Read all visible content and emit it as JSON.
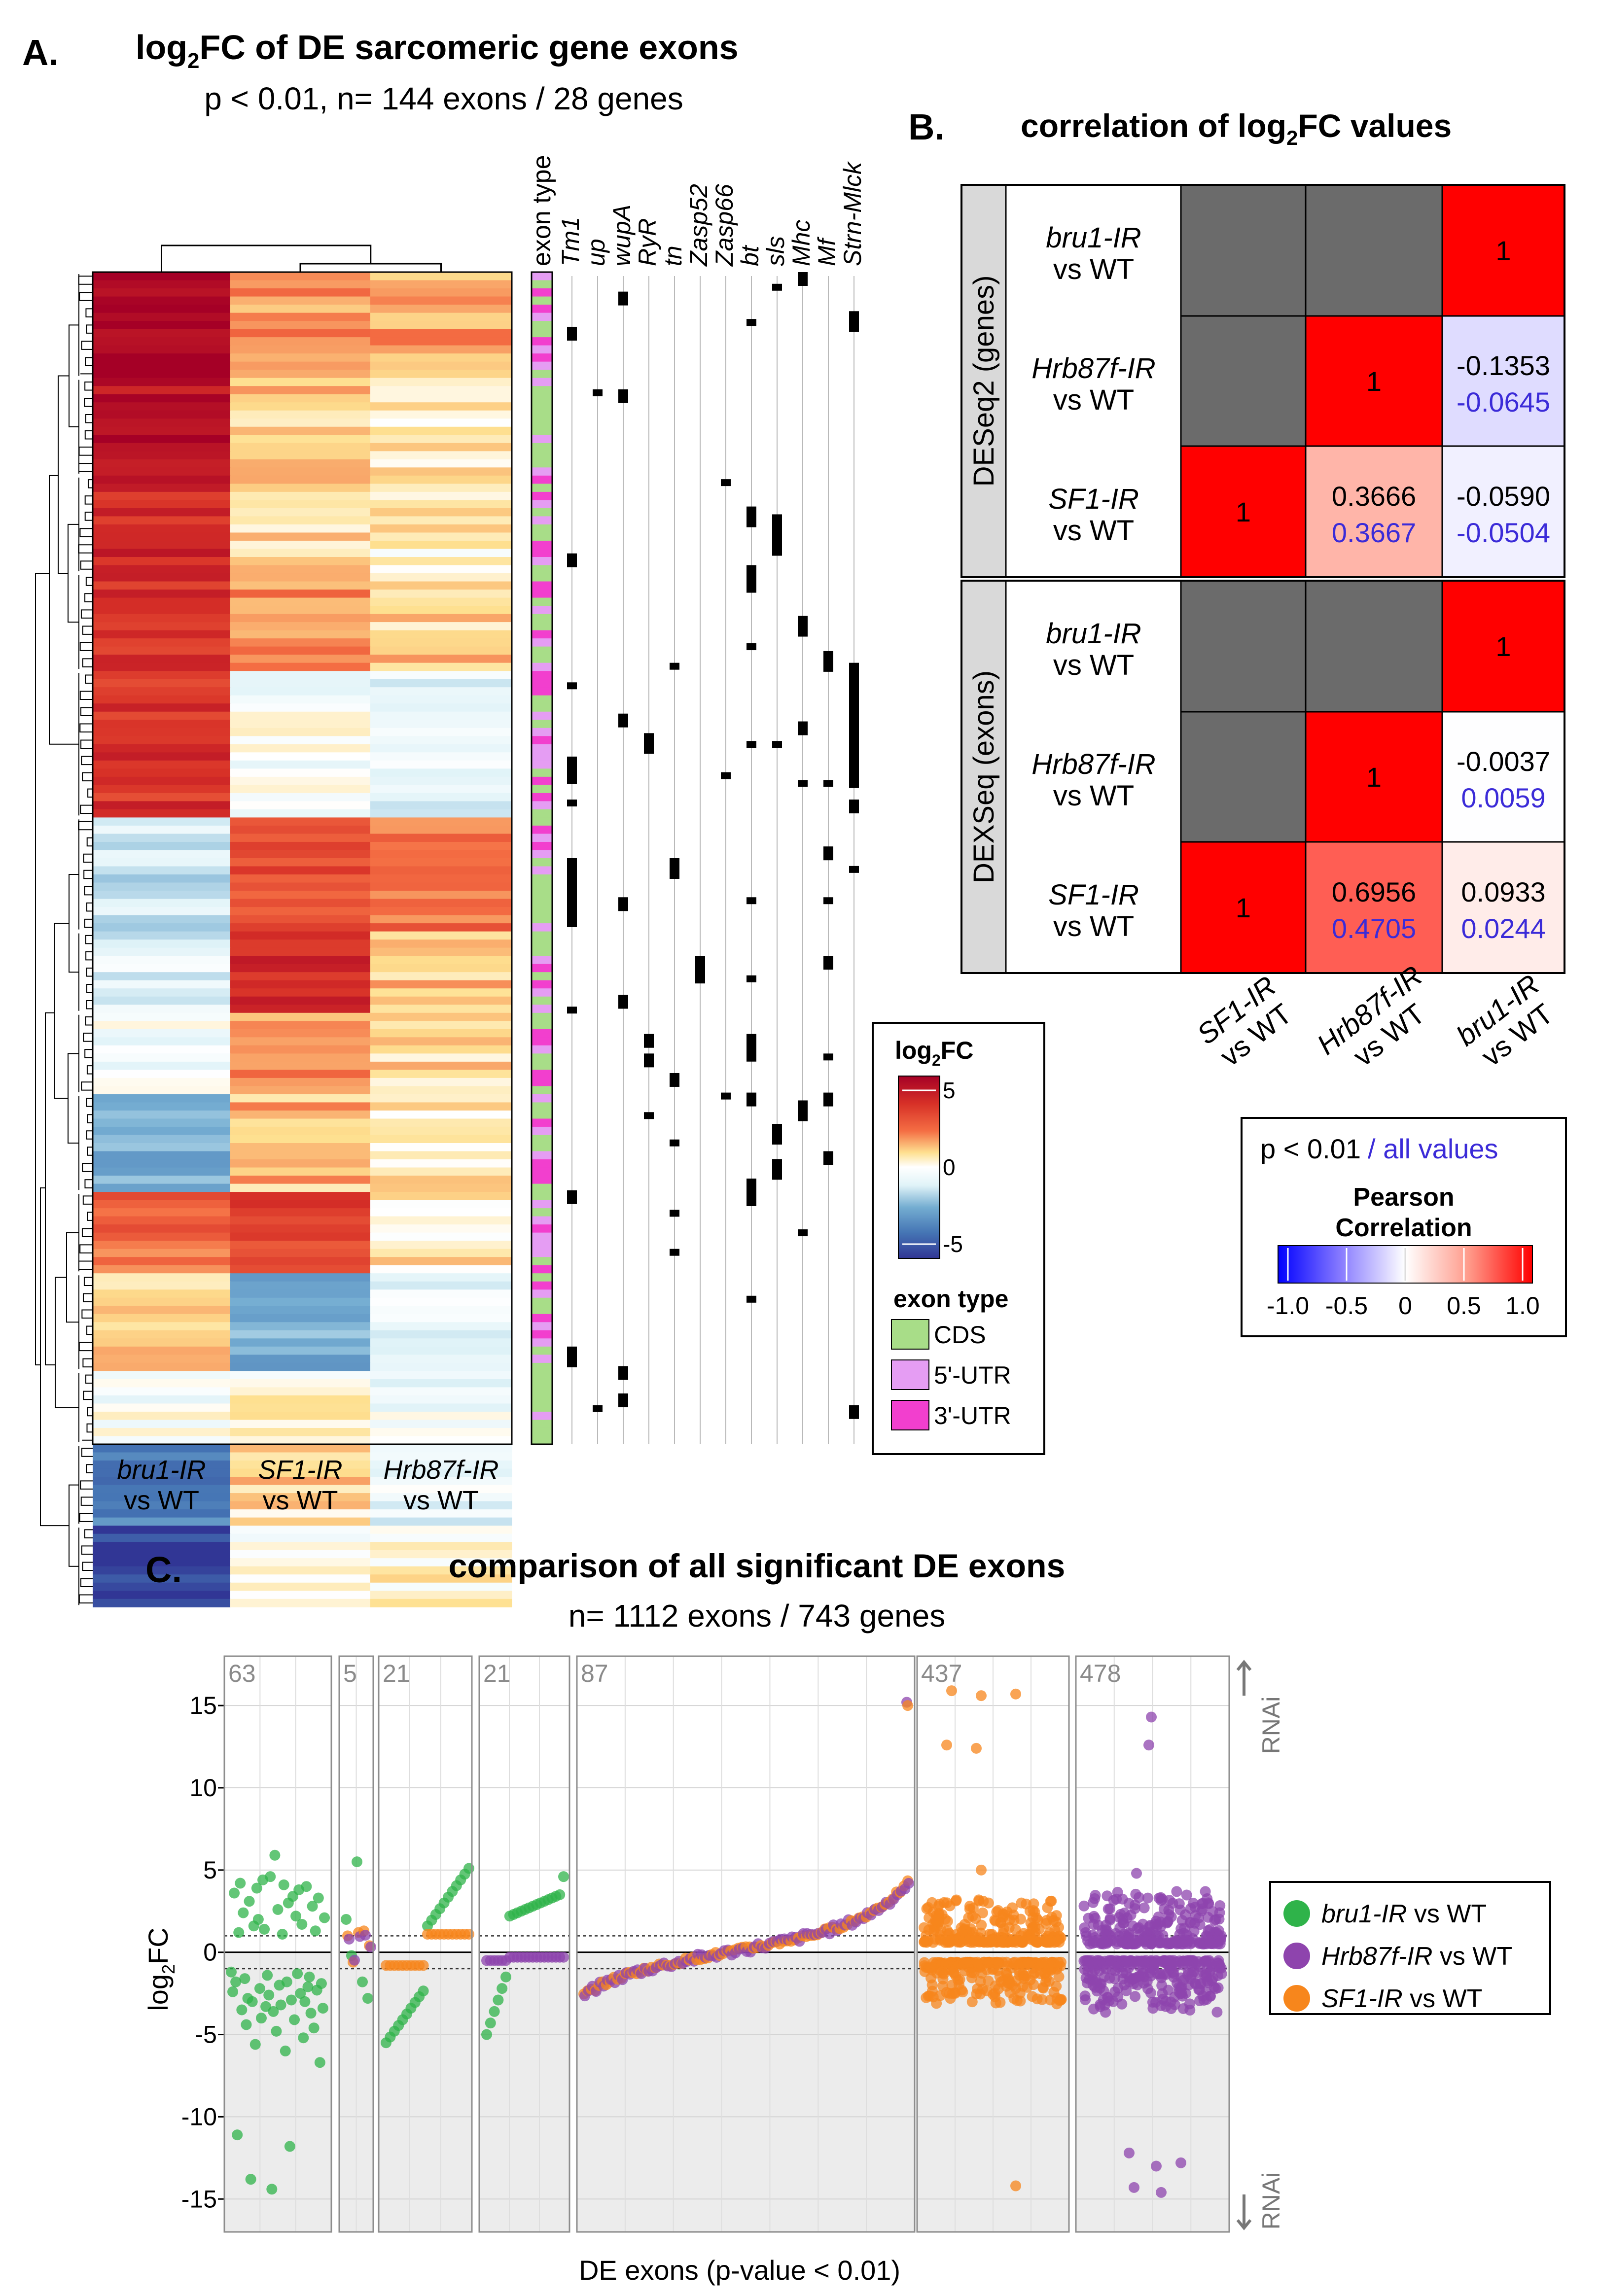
{
  "panelA": {
    "letter": "A.",
    "title_main": "log",
    "title_sub": "2",
    "title_rest": "FC of DE sarcomeric gene exons",
    "subtitle": "p < 0.01, n= 144 exons / 28 genes",
    "column_labels": [
      {
        "name": "bru1-IR",
        "suffix": "vs WT"
      },
      {
        "name": "SF1-IR",
        "suffix": "vs WT"
      },
      {
        "name": "Hrb87f-IR",
        "suffix": "vs WT"
      }
    ],
    "exon_type_header": "exon type",
    "gene_labels": [
      "Tm1",
      "up",
      "wupA",
      "RyR",
      "tn",
      "Zasp52",
      "Zasp66",
      "bt",
      "sls",
      "Mhc",
      "Mf",
      "Strn-Mlck"
    ],
    "legend": {
      "title_main": "log",
      "title_sub": "2",
      "title_rest": "FC",
      "ticks": [
        "5",
        "0",
        "-5"
      ],
      "exon_type_title": "exon type",
      "exon_types": [
        {
          "label": "CDS",
          "color": "#a8dd88"
        },
        {
          "label": "5'-UTR",
          "color": "#e59df3"
        },
        {
          "label": "3'-UTR",
          "color": "#f23fce"
        }
      ]
    },
    "colors": {
      "high": "#a50026",
      "mid": "#ffffff",
      "low": "#313695"
    }
  },
  "panelB": {
    "letter": "B.",
    "title_main": "correlation of log",
    "title_sub": "2",
    "title_rest": "FC values",
    "group_labels": [
      "DESeq2 (genes)",
      "DEXSeq (exons)"
    ],
    "row_labels": [
      {
        "name": "bru1-IR",
        "suffix": "vs WT"
      },
      {
        "name": "Hrb87f-IR",
        "suffix": "vs WT"
      },
      {
        "name": "SF1-IR",
        "suffix": "vs WT"
      }
    ],
    "col_labels": [
      {
        "name": "SF1-IR",
        "suffix": "vs WT"
      },
      {
        "name": "Hrb87f-IR",
        "suffix": "vs WT"
      },
      {
        "name": "bru1-IR",
        "suffix": "vs WT"
      }
    ],
    "legend": {
      "line1_black": "p < 0.01",
      "line1_blue": "/ all values",
      "title": "Pearson",
      "title2": "Correlation",
      "ticks": [
        "-1.0",
        "-0.5",
        "0",
        "0.5",
        "1.0"
      ]
    },
    "colors": {
      "gray": "#6b6b6b",
      "red": "#ff0000",
      "blue_text": "#3b2bd8"
    }
  },
  "panelC": {
    "letter": "C.",
    "title": "comparison of all significant DE exons",
    "subtitle": "n= 1112 exons / 743 genes",
    "ylabel_main": "log",
    "ylabel_sub": "2",
    "ylabel_rest": "FC",
    "xlabel": "DE exons (p-value < 0.01)",
    "yticks": [
      "15",
      "10",
      "5",
      "0",
      "-5",
      "-10",
      "-15"
    ],
    "facet_counts": [
      "63",
      "5",
      "21",
      "21",
      "87",
      "437",
      "478"
    ],
    "rnai_up": "RNAi",
    "rnai_down": "RNAi",
    "legend": [
      {
        "name": "bru1-IR",
        "suffix": " vs WT",
        "color": "#2fb34a"
      },
      {
        "name": "Hrb87f-IR",
        "suffix": " vs WT",
        "color": "#8e44ad"
      },
      {
        "name": "SF1-IR",
        "suffix": " vs WT",
        "color": "#f7861c"
      }
    ]
  },
  "chart_data": [
    {
      "type": "heatmap",
      "title": "log2FC of DE sarcomeric gene exons",
      "subtitle": "p < 0.01, n= 144 exons / 28 genes",
      "columns": [
        "bru1-IR vs WT",
        "SF1-IR vs WT",
        "Hrb87f-IR vs WT"
      ],
      "color_range": [
        -5,
        5
      ],
      "n_rows": 144,
      "row_blocks": [
        {
          "rows": 13,
          "values": [
            5.0,
            1.6,
            1.4
          ]
        },
        {
          "rows": 12,
          "values": [
            4.4,
            1.0,
            0.6
          ]
        },
        {
          "rows": 12,
          "values": [
            3.8,
            0.8,
            0.4
          ]
        },
        {
          "rows": 12,
          "values": [
            3.6,
            1.8,
            1.0
          ]
        },
        {
          "rows": 18,
          "values": [
            3.4,
            -0.2,
            -0.8
          ]
        },
        {
          "rows": 14,
          "values": [
            -1.2,
            2.8,
            2.2
          ]
        },
        {
          "rows": 10,
          "values": [
            -0.8,
            3.6,
            1.0
          ]
        },
        {
          "rows": 10,
          "values": [
            -0.4,
            1.6,
            0.8
          ]
        },
        {
          "rows": 12,
          "values": [
            -2.0,
            1.2,
            0.6
          ]
        },
        {
          "rows": 10,
          "values": [
            2.2,
            3.0,
            0.6
          ]
        },
        {
          "rows": 12,
          "values": [
            1.0,
            -2.2,
            -0.6
          ]
        },
        {
          "rows": 9,
          "values": [
            -0.2,
            0.4,
            -0.4
          ]
        },
        {
          "rows": 10,
          "values": [
            -3.2,
            0.8,
            -0.6
          ]
        },
        {
          "rows": 10,
          "values": [
            -4.8,
            0.2,
            0.4
          ]
        }
      ]
    },
    {
      "type": "table",
      "title": "correlation of log2FC values",
      "legend_range": [
        -1.0,
        1.0
      ],
      "rows": [
        "bru1-IR vs WT",
        "Hrb87f-IR vs WT",
        "SF1-IR vs WT"
      ],
      "cols": [
        "SF1-IR vs WT",
        "Hrb87f-IR vs WT",
        "bru1-IR vs WT"
      ],
      "groups": [
        {
          "name": "DESeq2 (genes)",
          "cells": [
            [
              null,
              null,
              {
                "p": "1"
              }
            ],
            [
              null,
              {
                "p": "1"
              },
              {
                "p": "-0.1353",
                "all": "-0.0645",
                "value": -0.1353
              }
            ],
            [
              {
                "p": "1"
              },
              {
                "p": "0.3666",
                "all": "0.3667",
                "value": 0.3666
              },
              {
                "p": "-0.0590",
                "all": "-0.0504",
                "value": -0.059
              }
            ]
          ]
        },
        {
          "name": "DEXSeq (exons)",
          "cells": [
            [
              null,
              null,
              {
                "p": "1"
              }
            ],
            [
              null,
              {
                "p": "1"
              },
              {
                "p": "-0.0037",
                "all": "0.0059",
                "value": -0.0037
              }
            ],
            [
              {
                "p": "1"
              },
              {
                "p": "0.6956",
                "all": "0.4705",
                "value": 0.6956
              },
              {
                "p": "0.0933",
                "all": "0.0244",
                "value": 0.0933
              }
            ]
          ]
        }
      ]
    },
    {
      "type": "scatter",
      "title": "comparison of all significant DE exons",
      "subtitle": "n= 1112 exons / 743 genes",
      "xlabel": "DE exons (p-value < 0.01)",
      "ylabel": "log2FC",
      "ylim": [
        -17,
        18
      ],
      "threshold_lines": [
        1,
        -1
      ],
      "facets": [
        {
          "count": 63,
          "series": [
            "bru1-IR"
          ]
        },
        {
          "count": 5,
          "series": [
            "bru1-IR",
            "Hrb87f-IR",
            "SF1-IR"
          ]
        },
        {
          "count": 21,
          "series": [
            "bru1-IR",
            "SF1-IR"
          ]
        },
        {
          "count": 21,
          "series": [
            "bru1-IR",
            "Hrb87f-IR"
          ]
        },
        {
          "count": 87,
          "series": [
            "Hrb87f-IR",
            "SF1-IR"
          ]
        },
        {
          "count": 437,
          "series": [
            "SF1-IR"
          ]
        },
        {
          "count": 478,
          "series": [
            "Hrb87f-IR"
          ]
        }
      ],
      "series": [
        {
          "name": "bru1-IR vs WT",
          "color": "#2fb34a",
          "points": [
            [
              1,
              -1.2
            ],
            [
              2,
              -2.4
            ],
            [
              3,
              3.6
            ],
            [
              4,
              -1.8
            ],
            [
              5,
              -11.1
            ],
            [
              6,
              1.2
            ],
            [
              7,
              4.2
            ],
            [
              8,
              -3.5
            ],
            [
              9,
              2.4
            ],
            [
              10,
              -1.6
            ],
            [
              11,
              -4.4
            ],
            [
              12,
              -2.8
            ],
            [
              13,
              3.1
            ],
            [
              14,
              -13.8
            ],
            [
              15,
              -3.0
            ],
            [
              16,
              1.6
            ],
            [
              17,
              -5.6
            ],
            [
              18,
              3.9
            ],
            [
              19,
              2.0
            ],
            [
              20,
              -2.2
            ],
            [
              21,
              -4.0
            ],
            [
              22,
              4.4
            ],
            [
              23,
              1.4
            ],
            [
              24,
              -3.3
            ],
            [
              25,
              -1.4
            ],
            [
              26,
              -2.6
            ],
            [
              27,
              4.6
            ],
            [
              28,
              -14.4
            ],
            [
              29,
              -3.6
            ],
            [
              30,
              5.9
            ],
            [
              31,
              -4.8
            ],
            [
              32,
              2.6
            ],
            [
              33,
              -2.0
            ],
            [
              34,
              -3.2
            ],
            [
              35,
              1.1
            ],
            [
              36,
              4.1
            ],
            [
              37,
              -6.0
            ],
            [
              38,
              -1.8
            ],
            [
              39,
              3.0
            ],
            [
              40,
              -11.8
            ],
            [
              41,
              -2.9
            ],
            [
              42,
              3.4
            ],
            [
              43,
              -4.1
            ],
            [
              44,
              2.2
            ],
            [
              45,
              -1.3
            ],
            [
              46,
              3.8
            ],
            [
              47,
              -2.5
            ],
            [
              48,
              1.7
            ],
            [
              49,
              -5.2
            ],
            [
              50,
              -3.0
            ],
            [
              51,
              4.0
            ],
            [
              52,
              -2.1
            ],
            [
              53,
              -1.5
            ],
            [
              54,
              -3.7
            ],
            [
              55,
              2.8
            ],
            [
              56,
              -4.6
            ],
            [
              57,
              1.3
            ],
            [
              58,
              -2.3
            ],
            [
              59,
              3.3
            ],
            [
              60,
              -6.7
            ],
            [
              61,
              -1.9
            ],
            [
              62,
              -3.4
            ],
            [
              63,
              2.1
            ]
          ]
        },
        {
          "name": "Hrb87f-IR vs WT",
          "color": "#8e44ad",
          "points": [
            [
              1,
              0.4
            ],
            [
              2,
              -0.5
            ],
            [
              3,
              1.2
            ],
            [
              4,
              -1.0
            ],
            [
              5,
              0.8
            ],
            [
              6,
              -2.2
            ],
            [
              7,
              -1.6
            ],
            [
              8,
              -1.0
            ],
            [
              9,
              -0.6
            ],
            [
              10,
              -0.2
            ],
            [
              11,
              0.2
            ],
            [
              12,
              0.6
            ],
            [
              13,
              1.0
            ],
            [
              14,
              1.4
            ],
            [
              15,
              1.8
            ],
            [
              16,
              2.2
            ],
            [
              17,
              15.2
            ],
            [
              18,
              -0.8
            ],
            [
              19,
              0.9
            ],
            [
              20,
              14.3
            ],
            [
              21,
              12.6
            ],
            [
              22,
              -12.2
            ],
            [
              23,
              -13.0
            ],
            [
              24,
              -14.3
            ],
            [
              25,
              4.8
            ],
            [
              26,
              -12.8
            ]
          ]
        },
        {
          "name": "SF1-IR vs WT",
          "color": "#f7861c",
          "points": [
            [
              1,
              1.1
            ],
            [
              2,
              -0.7
            ],
            [
              3,
              1.3
            ],
            [
              4,
              -1.0
            ],
            [
              5,
              -0.9
            ],
            [
              6,
              1.2
            ],
            [
              7,
              -1.1
            ],
            [
              8,
              -2.4
            ],
            [
              9,
              -1.2
            ],
            [
              10,
              -0.5
            ],
            [
              11,
              0.1
            ],
            [
              12,
              0.5
            ],
            [
              13,
              1.0
            ],
            [
              14,
              1.5
            ],
            [
              15,
              2.0
            ],
            [
              16,
              4.2
            ],
            [
              17,
              15.0
            ],
            [
              18,
              15.9
            ],
            [
              19,
              15.6
            ],
            [
              20,
              15.7
            ],
            [
              21,
              12.6
            ],
            [
              22,
              12.4
            ],
            [
              23,
              5.0
            ],
            [
              24,
              -14.2
            ]
          ]
        }
      ]
    }
  ]
}
